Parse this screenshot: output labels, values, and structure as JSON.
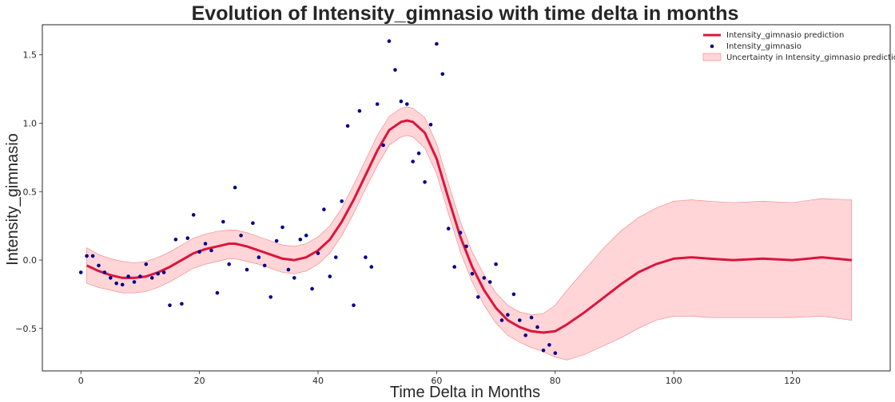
{
  "chart_data": {
    "type": "line",
    "title": "Evolution of Intensity_gimnasio with time delta in months",
    "xlabel": "Time Delta in Months",
    "ylabel": "Intensity_gimnasio",
    "xlim": [
      -6.5,
      136.5
    ],
    "ylim": [
      -0.81,
      1.72
    ],
    "xticks": [
      0,
      20,
      40,
      60,
      80,
      100,
      120
    ],
    "yticks": [
      -0.5,
      0.0,
      0.5,
      1.0,
      1.5
    ],
    "grid": false,
    "legend_position": "top-right",
    "colors": {
      "prediction": "#dc143c",
      "observed": "#00008b",
      "band_fill": "#ffb3b8",
      "band_edge": "#f08080"
    },
    "series": [
      {
        "name": "Intensity_gimnasio prediction",
        "kind": "line",
        "x": [
          1,
          3,
          5,
          7,
          9,
          11,
          13,
          15,
          17,
          19,
          21,
          23,
          25,
          26,
          28,
          30,
          32,
          34,
          36,
          38,
          40,
          42,
          44,
          46,
          48,
          50,
          52,
          54,
          55,
          56,
          58,
          60,
          62,
          64,
          66,
          68,
          70,
          72,
          74,
          76,
          78,
          80,
          82,
          85,
          88,
          91,
          94,
          97,
          100,
          103,
          106,
          110,
          115,
          120,
          125,
          130
        ],
        "y": [
          -0.04,
          -0.08,
          -0.11,
          -0.13,
          -0.13,
          -0.12,
          -0.09,
          -0.05,
          0.0,
          0.05,
          0.08,
          0.1,
          0.12,
          0.12,
          0.1,
          0.07,
          0.04,
          0.01,
          0.0,
          0.02,
          0.07,
          0.15,
          0.28,
          0.44,
          0.62,
          0.8,
          0.95,
          1.01,
          1.02,
          1.01,
          0.93,
          0.74,
          0.45,
          0.17,
          -0.05,
          -0.22,
          -0.35,
          -0.44,
          -0.49,
          -0.52,
          -0.53,
          -0.52,
          -0.47,
          -0.38,
          -0.28,
          -0.18,
          -0.09,
          -0.03,
          0.01,
          0.02,
          0.01,
          0.0,
          0.01,
          0.0,
          0.02,
          0.0
        ]
      },
      {
        "name": "Intensity_gimnasio",
        "kind": "scatter",
        "x": [
          0,
          1,
          2,
          3,
          4,
          5,
          6,
          7,
          8,
          9,
          10,
          11,
          12,
          13,
          14,
          15,
          16,
          17,
          18,
          19,
          20,
          21,
          22,
          23,
          24,
          25,
          26,
          27,
          28,
          29,
          30,
          31,
          32,
          33,
          34,
          35,
          36,
          37,
          38,
          39,
          40,
          41,
          42,
          43,
          44,
          45,
          46,
          47,
          48,
          49,
          50,
          51,
          52,
          53,
          54,
          55,
          56,
          57,
          58,
          59,
          60,
          61,
          62,
          63,
          64,
          65,
          66,
          67,
          68,
          69,
          70,
          71,
          72,
          73,
          74,
          75,
          76,
          77,
          78,
          79,
          80
        ],
        "y": [
          -0.09,
          0.03,
          0.03,
          -0.04,
          -0.09,
          -0.13,
          -0.17,
          -0.18,
          -0.12,
          -0.16,
          -0.12,
          -0.03,
          -0.13,
          -0.1,
          -0.09,
          -0.33,
          0.15,
          -0.32,
          0.16,
          0.33,
          0.06,
          0.12,
          0.07,
          -0.24,
          0.28,
          -0.03,
          0.53,
          0.18,
          -0.07,
          0.27,
          0.02,
          -0.04,
          -0.27,
          0.14,
          0.24,
          -0.07,
          -0.13,
          0.15,
          0.18,
          -0.21,
          0.05,
          0.37,
          -0.12,
          0.02,
          0.43,
          0.98,
          -0.33,
          1.09,
          0.02,
          -0.05,
          1.14,
          0.84,
          1.6,
          1.39,
          1.16,
          1.14,
          0.72,
          0.78,
          0.57,
          0.99,
          1.58,
          1.36,
          0.23,
          -0.05,
          0.2,
          0.1,
          -0.1,
          -0.27,
          -0.13,
          -0.16,
          -0.03,
          -0.44,
          -0.4,
          -0.25,
          -0.44,
          -0.55,
          -0.42,
          -0.49,
          -0.66,
          -0.62,
          -0.68
        ]
      },
      {
        "name": "Uncertainty in Intensity_gimnasio prediction",
        "kind": "band",
        "x": [
          1,
          3,
          5,
          7,
          9,
          11,
          13,
          15,
          17,
          19,
          21,
          23,
          25,
          26,
          28,
          30,
          32,
          34,
          36,
          38,
          40,
          42,
          44,
          46,
          48,
          50,
          52,
          54,
          55,
          56,
          58,
          60,
          62,
          64,
          66,
          68,
          70,
          72,
          74,
          76,
          78,
          80,
          82,
          85,
          88,
          91,
          94,
          97,
          100,
          103,
          106,
          110,
          115,
          120,
          125,
          130
        ],
        "upper": [
          0.09,
          0.04,
          0.01,
          -0.01,
          -0.02,
          -0.01,
          0.02,
          0.06,
          0.11,
          0.16,
          0.19,
          0.21,
          0.22,
          0.22,
          0.2,
          0.17,
          0.14,
          0.11,
          0.1,
          0.12,
          0.17,
          0.25,
          0.38,
          0.55,
          0.73,
          0.91,
          1.05,
          1.11,
          1.12,
          1.11,
          1.04,
          0.85,
          0.56,
          0.28,
          0.06,
          -0.11,
          -0.24,
          -0.33,
          -0.38,
          -0.4,
          -0.39,
          -0.33,
          -0.22,
          -0.07,
          0.08,
          0.21,
          0.31,
          0.38,
          0.43,
          0.44,
          0.43,
          0.42,
          0.43,
          0.42,
          0.45,
          0.44
        ],
        "lower": [
          -0.17,
          -0.2,
          -0.22,
          -0.24,
          -0.24,
          -0.23,
          -0.2,
          -0.16,
          -0.11,
          -0.06,
          -0.03,
          -0.01,
          0.01,
          0.01,
          -0.01,
          -0.03,
          -0.06,
          -0.09,
          -0.1,
          -0.08,
          -0.03,
          0.05,
          0.18,
          0.34,
          0.52,
          0.69,
          0.84,
          0.9,
          0.91,
          0.9,
          0.82,
          0.63,
          0.34,
          0.06,
          -0.16,
          -0.33,
          -0.46,
          -0.55,
          -0.6,
          -0.64,
          -0.67,
          -0.71,
          -0.73,
          -0.69,
          -0.63,
          -0.57,
          -0.5,
          -0.44,
          -0.41,
          -0.41,
          -0.42,
          -0.42,
          -0.42,
          -0.42,
          -0.41,
          -0.44
        ]
      }
    ]
  }
}
